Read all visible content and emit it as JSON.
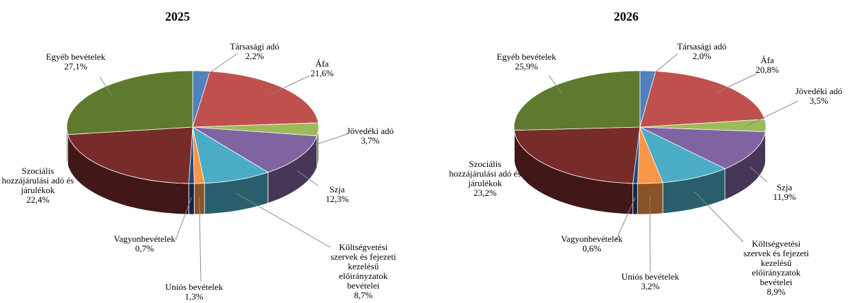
{
  "chart_data": [
    {
      "type": "pie",
      "title": "2025",
      "categories": [
        "Társasági adó",
        "Áfa",
        "Jövedéki adó",
        "Szja",
        "Költségvetési szervek és fejezeti kezelésű előirányzatok bevételei",
        "Uniós bevételek",
        "Vagyonbevételek",
        "Szociális hozzájárulási adó és járulékok",
        "Egyéb bevételek"
      ],
      "values": [
        2.2,
        21.6,
        3.7,
        12.3,
        8.7,
        1.3,
        0.7,
        22.4,
        27.1
      ],
      "value_labels": [
        "2,2%",
        "21,6%",
        "3,7%",
        "12,3%",
        "8,7%",
        "1,3%",
        "0,7%",
        "22,4%",
        "27,1%"
      ],
      "colors": [
        "#4f81bd",
        "#c0504d",
        "#9bbb59",
        "#8064a2",
        "#4bacc6",
        "#f79646",
        "#1f497d",
        "#772c2a",
        "#5e7a2e"
      ]
    },
    {
      "type": "pie",
      "title": "2026",
      "categories": [
        "Társasági adó",
        "Áfa",
        "Jövedéki adó",
        "Szja",
        "Költségvetési szervek és fejezeti kezelésű előirányzatok bevételei",
        "Uniós bevételek",
        "Vagyonbevételek",
        "Szociális hozzájárulási adó és járulékok",
        "Egyéb bevételek"
      ],
      "values": [
        2.0,
        20.8,
        3.5,
        11.9,
        8.9,
        3.2,
        0.6,
        23.2,
        25.9
      ],
      "value_labels": [
        "2,0%",
        "20,8%",
        "3,5%",
        "11,9%",
        "8,9%",
        "3,2%",
        "0,6%",
        "23,2%",
        "25,9%"
      ],
      "colors": [
        "#4f81bd",
        "#c0504d",
        "#9bbb59",
        "#8064a2",
        "#4bacc6",
        "#f79646",
        "#1f497d",
        "#772c2a",
        "#5e7a2e"
      ]
    }
  ]
}
